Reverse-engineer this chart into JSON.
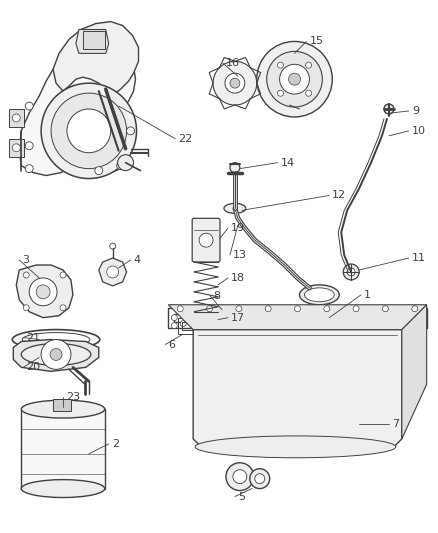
{
  "bg_color": "#ffffff",
  "line_color": "#404040",
  "label_color": "#404040",
  "fig_width": 4.38,
  "fig_height": 5.33,
  "dpi": 100
}
